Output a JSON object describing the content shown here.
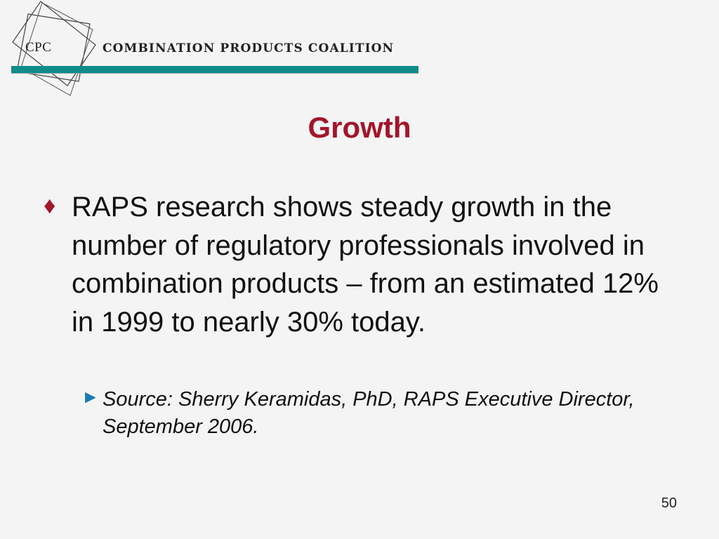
{
  "header": {
    "logo_text": "CPC",
    "org_name": "COMBINATION PRODUCTS COALITION",
    "accent_color": "#0f8c8a"
  },
  "slide": {
    "title": "Growth",
    "title_color": "#a3152a",
    "bullets": [
      {
        "icon": "diamond-bullet-icon",
        "text": "RAPS research shows steady growth in the number of regulatory professionals involved in combination products – from an estimated 12% in 1999 to nearly 30% today.",
        "sub_bullets": [
          {
            "icon": "arrow-bullet-icon",
            "text": "Source:  Sherry Keramidas, PhD, RAPS Executive Director, September 2006."
          }
        ]
      }
    ],
    "page_number": "50"
  }
}
